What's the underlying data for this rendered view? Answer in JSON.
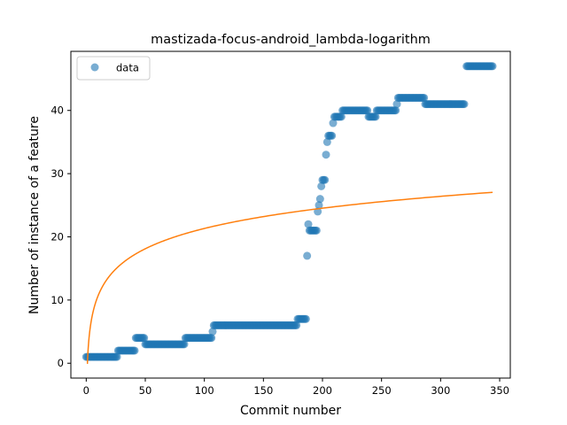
{
  "chart_data": {
    "type": "scatter",
    "title": "mastizada-focus-android_lambda-logarithm",
    "xlabel": "Commit number",
    "ylabel": "Number of instance of a feature",
    "xlim": [
      -13,
      359
    ],
    "ylim": [
      -2.35,
      49.35
    ],
    "xticks": [
      0,
      50,
      100,
      150,
      200,
      250,
      300,
      350
    ],
    "yticks": [
      0,
      10,
      20,
      30,
      40
    ],
    "legend": {
      "position": "top-left",
      "entries": [
        {
          "label": "data",
          "marker": "circle",
          "color": "#1f77b4"
        }
      ]
    },
    "colors": {
      "points": "#1f77b4",
      "fit": "#ff7f0e"
    },
    "series": [
      {
        "kind": "points",
        "label": "data",
        "segments": [
          {
            "x_from": 0,
            "x_to": 26,
            "y": 1
          },
          {
            "x_from": 27,
            "x_to": 41,
            "y": 2
          },
          {
            "x_from": 42,
            "x_to": 49,
            "y": 4
          },
          {
            "x_from": 50,
            "x_to": 83,
            "y": 3
          },
          {
            "x_from": 84,
            "x_to": 106,
            "y": 4
          },
          {
            "x_from": 107,
            "x_to": 107,
            "y": 5
          },
          {
            "x_from": 108,
            "x_to": 178,
            "y": 6
          },
          {
            "x_from": 179,
            "x_to": 186,
            "y": 7
          },
          {
            "x_from": 187,
            "x_to": 187,
            "y": 17
          },
          {
            "x_from": 188,
            "x_to": 188,
            "y": 22
          },
          {
            "x_from": 189,
            "x_to": 195,
            "y": 21
          },
          {
            "x_from": 196,
            "x_to": 196,
            "y": 24
          },
          {
            "x_from": 197,
            "x_to": 197,
            "y": 25
          },
          {
            "x_from": 198,
            "x_to": 198,
            "y": 26
          },
          {
            "x_from": 199,
            "x_to": 199,
            "y": 28
          },
          {
            "x_from": 200,
            "x_to": 202,
            "y": 29
          },
          {
            "x_from": 203,
            "x_to": 203,
            "y": 33
          },
          {
            "x_from": 204,
            "x_to": 204,
            "y": 35
          },
          {
            "x_from": 205,
            "x_to": 208,
            "y": 36
          },
          {
            "x_from": 209,
            "x_to": 209,
            "y": 38
          },
          {
            "x_from": 210,
            "x_to": 216,
            "y": 39
          },
          {
            "x_from": 217,
            "x_to": 238,
            "y": 40
          },
          {
            "x_from": 239,
            "x_to": 245,
            "y": 39
          },
          {
            "x_from": 246,
            "x_to": 262,
            "y": 40
          },
          {
            "x_from": 263,
            "x_to": 263,
            "y": 41
          },
          {
            "x_from": 264,
            "x_to": 286,
            "y": 42
          },
          {
            "x_from": 287,
            "x_to": 320,
            "y": 41
          },
          {
            "x_from": 322,
            "x_to": 344,
            "y": 47
          }
        ]
      },
      {
        "kind": "line",
        "label": "",
        "fit": "logarithmic",
        "a": 4.63,
        "b": 0,
        "x_range": [
          0.5,
          344
        ]
      }
    ]
  }
}
